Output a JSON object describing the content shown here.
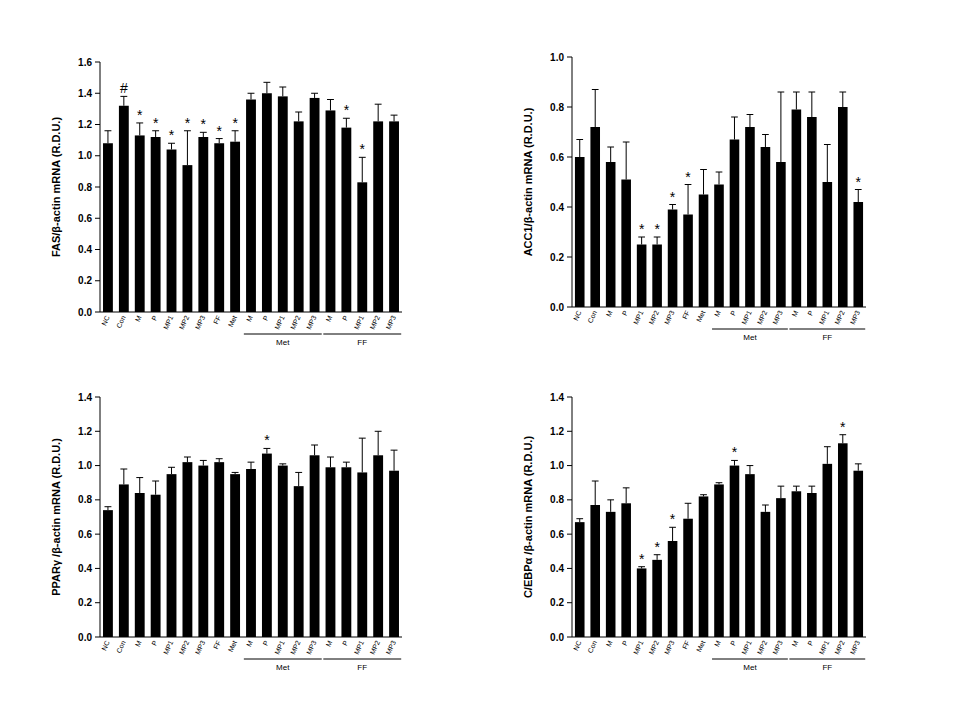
{
  "chart_data": [
    {
      "type": "bar",
      "y_label": "FAS/β-actin mRNA (R.D.U.)",
      "categories": [
        "NC",
        "Con",
        "M",
        "P",
        "MP1",
        "MP2",
        "MP3",
        "FF",
        "Met",
        "M",
        "P",
        "MP1",
        "MP2",
        "MP3",
        "M",
        "P",
        "MP1",
        "MP2",
        "MP3"
      ],
      "values": [
        1.08,
        1.32,
        1.13,
        1.12,
        1.04,
        0.94,
        1.12,
        1.08,
        1.09,
        1.36,
        1.4,
        1.38,
        1.22,
        1.37,
        1.29,
        1.18,
        0.83,
        1.22,
        1.22
      ],
      "errors": [
        0.08,
        0.06,
        0.08,
        0.04,
        0.04,
        0.22,
        0.03,
        0.03,
        0.07,
        0.04,
        0.07,
        0.06,
        0.06,
        0.03,
        0.07,
        0.06,
        0.16,
        0.11,
        0.04
      ],
      "annotations": [
        null,
        "#",
        "*",
        "*",
        "*",
        "*",
        "*",
        "*",
        "*",
        null,
        null,
        null,
        null,
        null,
        null,
        "*",
        "*",
        null,
        null
      ],
      "groups": [
        {
          "label": "Met",
          "start": 9,
          "end": 13
        },
        {
          "label": "FF",
          "start": 14,
          "end": 18
        }
      ],
      "color": "#000000",
      "ylim": [
        0,
        1.6
      ],
      "yticks": [
        {
          "value": 0,
          "label": "0.0"
        },
        0.2,
        0.4,
        0.6,
        0.8,
        {
          "value": 1,
          "label": "1.0"
        },
        1.2,
        1.4,
        1.6
      ]
    },
    {
      "type": "bar",
      "y_label": "ACC1/β-actin mRNA (R.D.U.)",
      "categories": [
        "NC",
        "Con",
        "M",
        "P",
        "MP1",
        "MP2",
        "MP3",
        "FF",
        "Met",
        "M",
        "P",
        "MP1",
        "MP2",
        "MP3",
        "M",
        "P",
        "MP1",
        "MP2",
        "MP3"
      ],
      "values": [
        0.6,
        0.72,
        0.58,
        0.51,
        0.25,
        0.25,
        0.39,
        0.37,
        0.45,
        0.49,
        0.67,
        0.72,
        0.64,
        0.58,
        0.79,
        0.76,
        0.5,
        0.8,
        0.42
      ],
      "errors": [
        0.07,
        0.15,
        0.06,
        0.15,
        0.03,
        0.03,
        0.02,
        0.12,
        0.1,
        0.05,
        0.09,
        0.05,
        0.05,
        0.28,
        0.07,
        0.1,
        0.15,
        0.06,
        0.05
      ],
      "annotations": [
        null,
        null,
        null,
        null,
        "*",
        "*",
        "*",
        "*",
        null,
        null,
        null,
        null,
        null,
        null,
        null,
        null,
        null,
        null,
        "*"
      ],
      "groups": [
        {
          "label": "Met",
          "start": 9,
          "end": 13
        },
        {
          "label": "FF",
          "start": 14,
          "end": 18
        }
      ],
      "color": "#000000",
      "ylim": [
        0,
        1.0
      ],
      "yticks": [
        {
          "value": 0,
          "label": "0.0"
        },
        0.2,
        0.4,
        0.6,
        0.8,
        {
          "value": 1,
          "label": "1.0"
        }
      ]
    },
    {
      "type": "bar",
      "y_label": "PPARγ /β-actin mRNA (R.D.U.)",
      "categories": [
        "NC",
        "Con",
        "M",
        "P",
        "MP1",
        "MP2",
        "MP3",
        "FF",
        "Met",
        "M",
        "P",
        "MP1",
        "MP2",
        "MP3",
        "M",
        "P",
        "MP1",
        "MP2",
        "MP3"
      ],
      "values": [
        0.74,
        0.89,
        0.84,
        0.83,
        0.95,
        1.02,
        1.0,
        1.02,
        0.95,
        0.98,
        1.07,
        1.0,
        0.88,
        1.06,
        0.99,
        0.99,
        0.96,
        1.06,
        0.97
      ],
      "errors": [
        0.02,
        0.09,
        0.09,
        0.08,
        0.04,
        0.03,
        0.03,
        0.02,
        0.01,
        0.04,
        0.03,
        0.01,
        0.08,
        0.06,
        0.06,
        0.03,
        0.2,
        0.14,
        0.12
      ],
      "annotations": [
        null,
        null,
        null,
        null,
        null,
        null,
        null,
        null,
        null,
        null,
        "*",
        null,
        null,
        null,
        null,
        null,
        null,
        null,
        null
      ],
      "groups": [
        {
          "label": "Met",
          "start": 9,
          "end": 13
        },
        {
          "label": "FF",
          "start": 14,
          "end": 18
        }
      ],
      "color": "#000000",
      "ylim": [
        0,
        1.4
      ],
      "yticks": [
        {
          "value": 0,
          "label": "0.0"
        },
        0.2,
        0.4,
        0.6,
        0.8,
        {
          "value": 1,
          "label": "1.0"
        },
        1.2,
        1.4
      ]
    },
    {
      "type": "bar",
      "y_label": "C/EBPα /β-actin mRNA (R.D.U.)",
      "categories": [
        "NC",
        "Con",
        "M",
        "P",
        "MP1",
        "MP2",
        "MP3",
        "FF",
        "Met",
        "M",
        "P",
        "MP1",
        "MP2",
        "MP3",
        "M",
        "P",
        "MP1",
        "MP2",
        "MP3"
      ],
      "values": [
        0.67,
        0.77,
        0.73,
        0.78,
        0.4,
        0.45,
        0.56,
        0.69,
        0.82,
        0.89,
        1.0,
        0.95,
        0.73,
        0.81,
        0.85,
        0.84,
        1.01,
        1.13,
        0.97
      ],
      "errors": [
        0.02,
        0.14,
        0.07,
        0.09,
        0.01,
        0.03,
        0.08,
        0.09,
        0.01,
        0.01,
        0.03,
        0.05,
        0.04,
        0.07,
        0.03,
        0.04,
        0.1,
        0.05,
        0.04
      ],
      "annotations": [
        null,
        null,
        null,
        null,
        "*",
        "*",
        "*",
        null,
        null,
        null,
        "*",
        null,
        null,
        null,
        null,
        null,
        null,
        "*",
        null
      ],
      "groups": [
        {
          "label": "Met",
          "start": 9,
          "end": 13
        },
        {
          "label": "FF",
          "start": 14,
          "end": 18
        }
      ],
      "color": "#000000",
      "ylim": [
        0,
        1.4
      ],
      "yticks": [
        {
          "value": 0,
          "label": "0.0"
        },
        0.2,
        0.4,
        0.6,
        0.8,
        {
          "value": 1,
          "label": "1.0"
        },
        1.2,
        1.4
      ]
    }
  ]
}
